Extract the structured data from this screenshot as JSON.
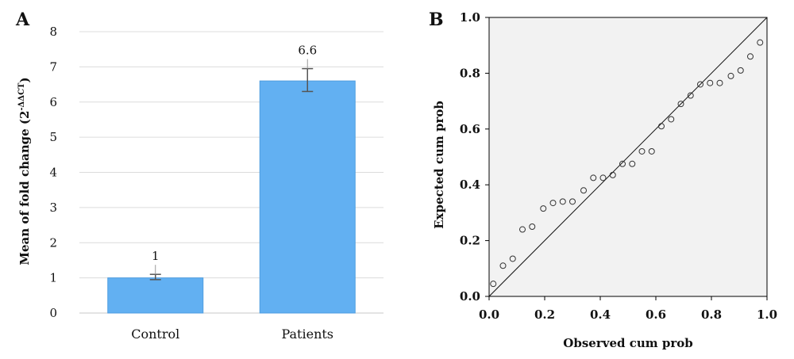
{
  "chart_data": [
    {
      "panel": "A",
      "type": "bar",
      "categories": [
        "Control",
        "Patients"
      ],
      "values": [
        1,
        6.6
      ],
      "data_labels": [
        "1",
        "6.6"
      ],
      "error_bars": [
        {
          "low": 0.95,
          "high": 1.1
        },
        {
          "low": 6.3,
          "high": 6.95
        }
      ],
      "ylabel_main": "Mean of fold change (2",
      "ylabel_sup": "-ΔΔCT",
      "ylabel_close": ")",
      "ylim": [
        0,
        8
      ],
      "yticks": [
        0,
        1,
        2,
        3,
        4,
        5,
        6,
        7,
        8
      ],
      "grid": true,
      "bar_color": "#62b0f2"
    },
    {
      "panel": "B",
      "type": "scatter",
      "xlabel": "Observed cum prob",
      "ylabel": "Expected cum prob",
      "xlim": [
        0,
        1
      ],
      "ylim": [
        0,
        1
      ],
      "ticks": [
        "0.0",
        "0.2",
        "0.4",
        "0.6",
        "0.8",
        "1.0"
      ],
      "reference_line": [
        [
          0,
          0
        ],
        [
          1,
          1
        ]
      ],
      "points": [
        [
          0.015,
          0.045
        ],
        [
          0.05,
          0.11
        ],
        [
          0.085,
          0.135
        ],
        [
          0.12,
          0.24
        ],
        [
          0.155,
          0.25
        ],
        [
          0.195,
          0.315
        ],
        [
          0.23,
          0.335
        ],
        [
          0.265,
          0.34
        ],
        [
          0.3,
          0.34
        ],
        [
          0.34,
          0.38
        ],
        [
          0.375,
          0.425
        ],
        [
          0.41,
          0.425
        ],
        [
          0.445,
          0.435
        ],
        [
          0.48,
          0.475
        ],
        [
          0.515,
          0.475
        ],
        [
          0.55,
          0.52
        ],
        [
          0.585,
          0.52
        ],
        [
          0.62,
          0.61
        ],
        [
          0.655,
          0.635
        ],
        [
          0.69,
          0.69
        ],
        [
          0.725,
          0.72
        ],
        [
          0.76,
          0.76
        ],
        [
          0.795,
          0.765
        ],
        [
          0.83,
          0.765
        ],
        [
          0.87,
          0.79
        ],
        [
          0.905,
          0.81
        ],
        [
          0.94,
          0.86
        ],
        [
          0.975,
          0.91
        ]
      ],
      "plot_bg": "#f2f2f2"
    }
  ]
}
